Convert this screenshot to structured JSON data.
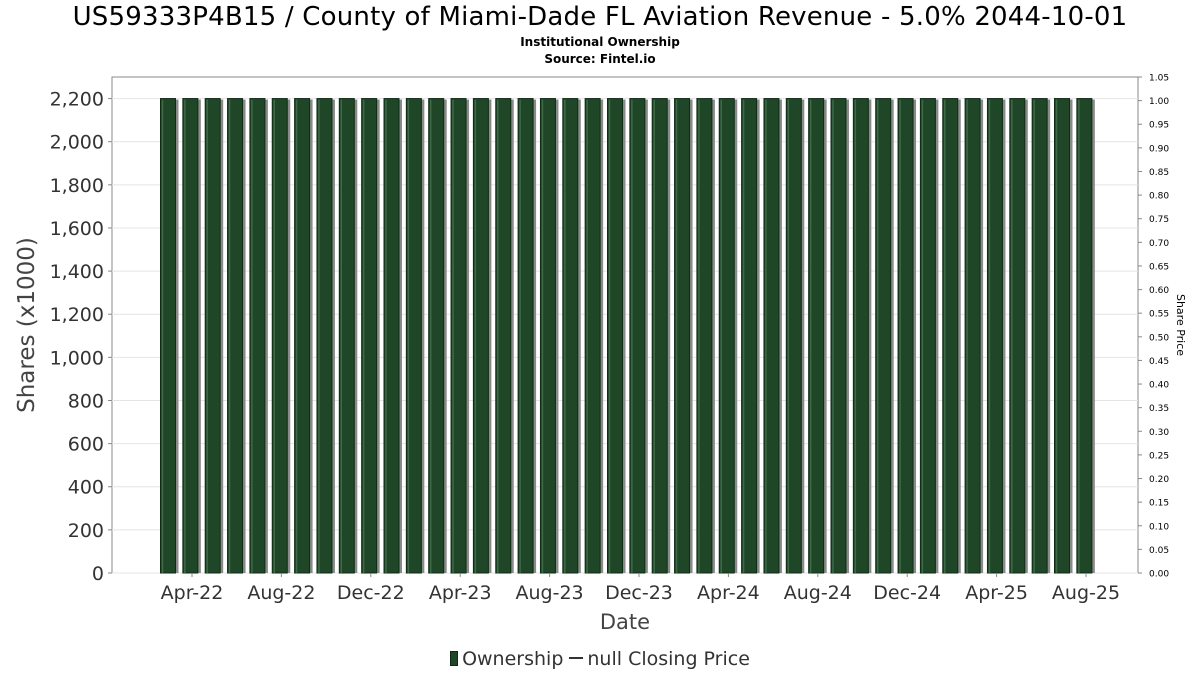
{
  "chart_data": {
    "type": "bar",
    "title": "US59333P4B15 / County of Miami-Dade FL Aviation Revenue - 5.0% 2044-10-01",
    "subtitle_lines": [
      "Institutional Ownership",
      "Source: Fintel.io"
    ],
    "xlabel": "Date",
    "ylabel": "Shares (x1000)",
    "y2label": "Share Price",
    "x_ticks": [
      "Apr-22",
      "Aug-22",
      "Dec-22",
      "Apr-23",
      "Aug-23",
      "Dec-23",
      "Apr-24",
      "Aug-24",
      "Dec-24",
      "Apr-25",
      "Aug-25"
    ],
    "ylim": [
      0,
      2300
    ],
    "y_ticks": [
      "0",
      "200",
      "400",
      "600",
      "800",
      "1,000",
      "1,200",
      "1,400",
      "1,600",
      "1,800",
      "2,000",
      "2,200"
    ],
    "y2lim": [
      0,
      1.05
    ],
    "y2_ticks": [
      "0.00",
      "0.05",
      "0.10",
      "0.15",
      "0.20",
      "0.25",
      "0.30",
      "0.35",
      "0.40",
      "0.45",
      "0.50",
      "0.55",
      "0.60",
      "0.65",
      "0.70",
      "0.75",
      "0.80",
      "0.85",
      "0.90",
      "0.95",
      "1.00",
      "1.05"
    ],
    "grid": true,
    "legend_position": "bottom",
    "series": [
      {
        "name": "Ownership",
        "color": "#1e4627",
        "values": [
          2200,
          2200,
          2200,
          2200,
          2200,
          2200,
          2200,
          2200,
          2200,
          2200,
          2200,
          2200,
          2200,
          2200,
          2200,
          2200,
          2200,
          2200,
          2200,
          2200,
          2200,
          2200,
          2200,
          2200,
          2200,
          2200,
          2200,
          2200,
          2200,
          2200,
          2200,
          2200,
          2200,
          2200,
          2200,
          2200,
          2200,
          2200,
          2200,
          2200,
          2200,
          2200
        ]
      }
    ],
    "legend": [
      "Ownership",
      "null Closing Price"
    ]
  }
}
